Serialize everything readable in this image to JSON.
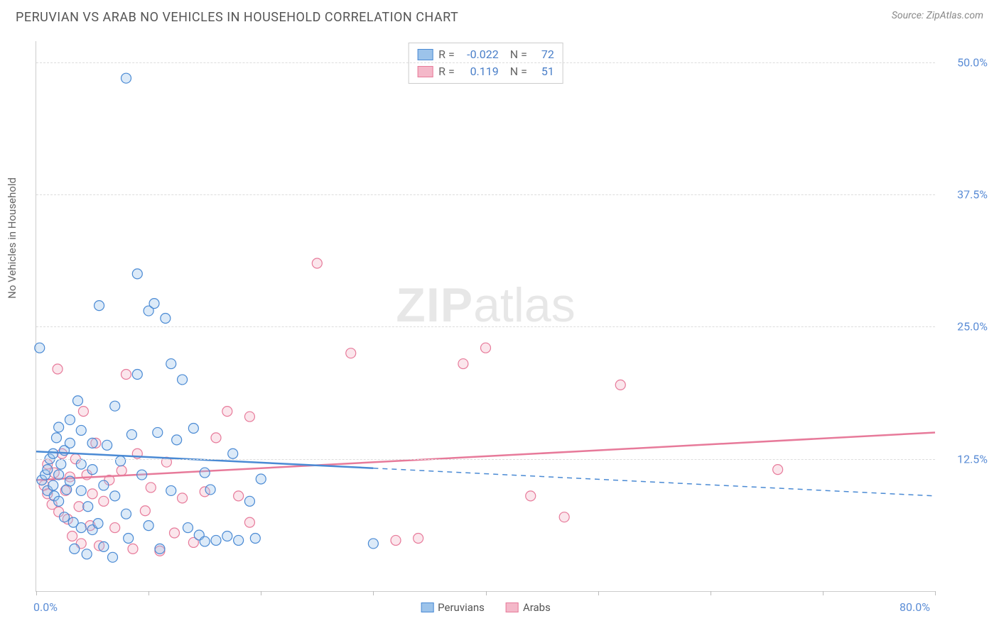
{
  "header": {
    "title": "PERUVIAN VS ARAB NO VEHICLES IN HOUSEHOLD CORRELATION CHART",
    "source": "Source: ZipAtlas.com"
  },
  "watermark": {
    "zip": "ZIP",
    "atlas": "atlas"
  },
  "chart": {
    "type": "scatter",
    "y_axis_title": "No Vehicles in Household",
    "xlim": [
      0,
      80
    ],
    "ylim": [
      0,
      52
    ],
    "x_ticks": [
      0,
      10,
      20,
      30,
      40,
      50,
      60,
      70,
      80
    ],
    "x_tick_labels": {
      "0": "0.0%",
      "80": "80.0%"
    },
    "y_gridlines": [
      12.5,
      25.0,
      37.5,
      50.0
    ],
    "y_tick_labels": {
      "12.5": "12.5%",
      "25.0": "25.0%",
      "37.5": "37.5%",
      "50.0": "50.0%"
    },
    "background_color": "#ffffff",
    "grid_color": "#dddddd",
    "marker_radius": 7,
    "marker_fill_opacity": 0.35,
    "marker_stroke_width": 1.2,
    "line_width": 2.5,
    "series": {
      "peruvians": {
        "label": "Peruvians",
        "color_stroke": "#4a8ad4",
        "color_fill": "#9cc3ea",
        "R": "-0.022",
        "N": "72",
        "trend": {
          "y_at_x0": 13.2,
          "y_at_xmax": 9.0,
          "solid_until_x": 30
        },
        "points": [
          [
            0.5,
            10.5
          ],
          [
            0.8,
            11
          ],
          [
            1,
            11.5
          ],
          [
            1,
            9.5
          ],
          [
            1.2,
            12.5
          ],
          [
            1.5,
            13
          ],
          [
            1.5,
            10
          ],
          [
            1.6,
            9
          ],
          [
            1.8,
            14.5
          ],
          [
            2,
            15.5
          ],
          [
            2,
            8.5
          ],
          [
            2,
            11
          ],
          [
            2.2,
            12
          ],
          [
            2.5,
            13.3
          ],
          [
            2.5,
            7
          ],
          [
            2.7,
            9.6
          ],
          [
            3,
            10.4
          ],
          [
            3,
            14
          ],
          [
            3,
            16.2
          ],
          [
            3.3,
            6.5
          ],
          [
            3.4,
            4
          ],
          [
            3.7,
            18
          ],
          [
            4,
            12
          ],
          [
            4,
            6
          ],
          [
            4,
            9.5
          ],
          [
            4,
            15.2
          ],
          [
            4.5,
            3.5
          ],
          [
            4.6,
            8
          ],
          [
            5,
            11.5
          ],
          [
            5,
            5.8
          ],
          [
            5,
            14
          ],
          [
            5.5,
            6.4
          ],
          [
            5.6,
            27
          ],
          [
            6,
            10
          ],
          [
            6,
            4.2
          ],
          [
            6.3,
            13.8
          ],
          [
            6.8,
            3.2
          ],
          [
            7,
            17.5
          ],
          [
            7,
            9
          ],
          [
            7.5,
            12.3
          ],
          [
            8,
            48.5
          ],
          [
            8,
            7.3
          ],
          [
            8.2,
            5
          ],
          [
            8.5,
            14.8
          ],
          [
            9,
            30
          ],
          [
            9,
            20.5
          ],
          [
            9.4,
            11
          ],
          [
            10,
            6.2
          ],
          [
            10,
            26.5
          ],
          [
            10.5,
            27.2
          ],
          [
            10.8,
            15
          ],
          [
            11,
            4
          ],
          [
            11.5,
            25.8
          ],
          [
            12,
            9.5
          ],
          [
            12,
            21.5
          ],
          [
            12.5,
            14.3
          ],
          [
            13,
            20
          ],
          [
            13.5,
            6
          ],
          [
            14,
            15.4
          ],
          [
            14.5,
            5.3
          ],
          [
            15,
            11.2
          ],
          [
            15,
            4.7
          ],
          [
            15.5,
            9.6
          ],
          [
            16,
            4.8
          ],
          [
            17,
            5.2
          ],
          [
            17.5,
            13
          ],
          [
            18,
            4.8
          ],
          [
            19,
            8.5
          ],
          [
            19.5,
            5
          ],
          [
            20,
            10.6
          ],
          [
            30,
            4.5
          ],
          [
            0.3,
            23
          ]
        ]
      },
      "arabs": {
        "label": "Arabs",
        "color_stroke": "#e77a9a",
        "color_fill": "#f4b8c9",
        "R": "0.119",
        "N": "51",
        "trend": {
          "y_at_x0": 10.5,
          "y_at_xmax": 15.0,
          "solid_until_x": 80
        },
        "points": [
          [
            0.7,
            10
          ],
          [
            1,
            9.2
          ],
          [
            1,
            12
          ],
          [
            1.4,
            8.2
          ],
          [
            1.6,
            11.2
          ],
          [
            1.9,
            21
          ],
          [
            2,
            7.5
          ],
          [
            2.3,
            13
          ],
          [
            2.6,
            9.5
          ],
          [
            2.8,
            6.8
          ],
          [
            3,
            10.8
          ],
          [
            3.2,
            5.2
          ],
          [
            3.5,
            12.5
          ],
          [
            3.8,
            8
          ],
          [
            4,
            4.5
          ],
          [
            4.2,
            17
          ],
          [
            4.5,
            11
          ],
          [
            4.8,
            6.2
          ],
          [
            5,
            9.2
          ],
          [
            5.3,
            14
          ],
          [
            5.6,
            4.3
          ],
          [
            6,
            8.5
          ],
          [
            6.5,
            10.5
          ],
          [
            7,
            6
          ],
          [
            7.6,
            11.4
          ],
          [
            8,
            20.5
          ],
          [
            8.6,
            4
          ],
          [
            9,
            13
          ],
          [
            9.7,
            7.6
          ],
          [
            10.2,
            9.8
          ],
          [
            11,
            3.8
          ],
          [
            11.6,
            12.2
          ],
          [
            12.3,
            5.5
          ],
          [
            13,
            8.8
          ],
          [
            14,
            4.6
          ],
          [
            15,
            9.4
          ],
          [
            16,
            14.5
          ],
          [
            17,
            17
          ],
          [
            18,
            9
          ],
          [
            19,
            6.5
          ],
          [
            19,
            16.5
          ],
          [
            25,
            31
          ],
          [
            28,
            22.5
          ],
          [
            32,
            4.8
          ],
          [
            34,
            5
          ],
          [
            38,
            21.5
          ],
          [
            40,
            23
          ],
          [
            44,
            9
          ],
          [
            47,
            7
          ],
          [
            52,
            19.5
          ],
          [
            66,
            11.5
          ]
        ]
      }
    }
  },
  "legend_bottom": {
    "items": [
      {
        "key": "peruvians",
        "label": "Peruvians"
      },
      {
        "key": "arabs",
        "label": "Arabs"
      }
    ]
  }
}
